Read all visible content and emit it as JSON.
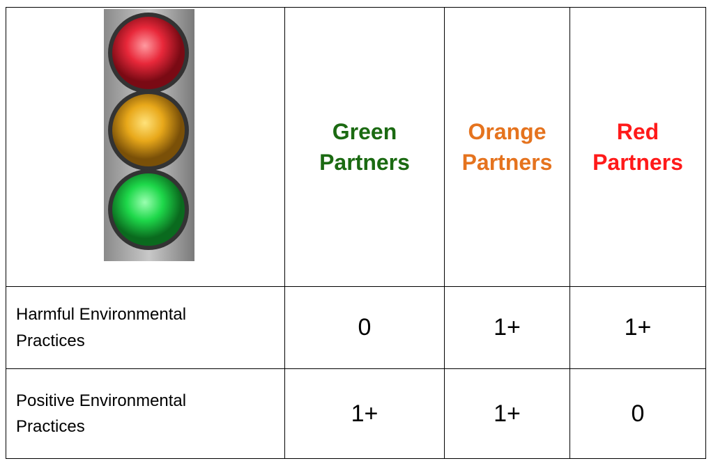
{
  "table": {
    "header": [
      "Green Partners",
      "Orange Partners",
      "Red Partners"
    ],
    "rows": [
      [
        "Harmful Environmental Practices",
        "0",
        "1+",
        "1+"
      ],
      [
        "Positive Environmental Practices",
        "1+",
        "1+",
        "0"
      ]
    ]
  }
}
